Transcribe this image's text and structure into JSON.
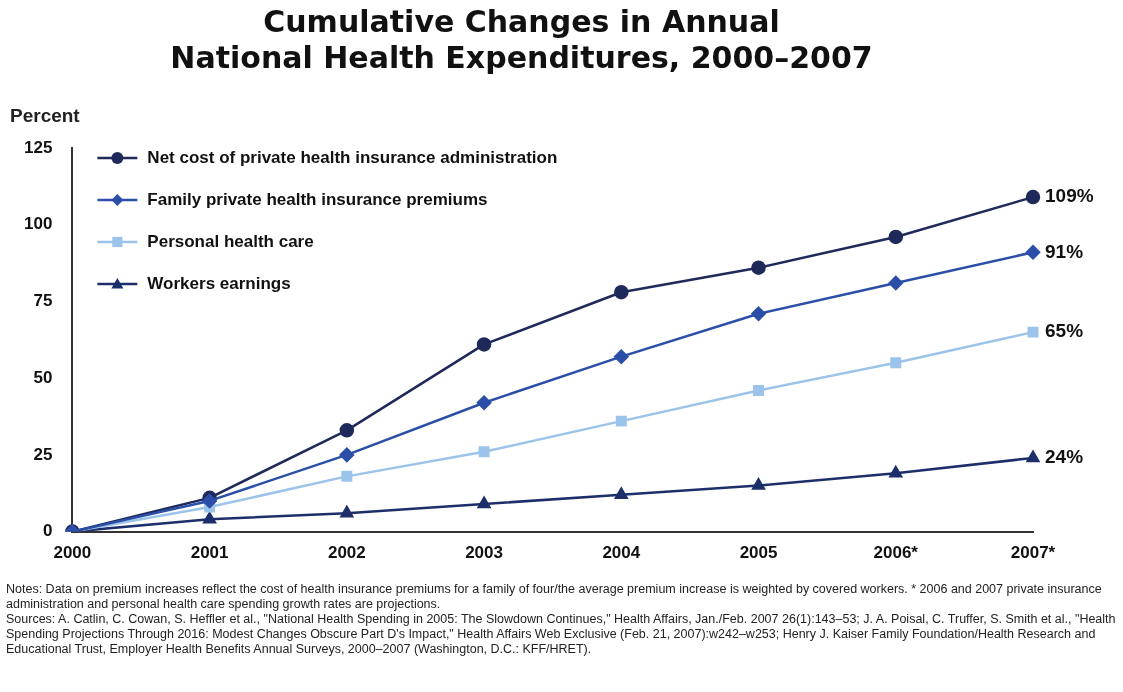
{
  "chart_data": {
    "type": "line",
    "title": "Cumulative Changes in Annual\nNational Health Expenditures, 2000–2007",
    "ylabel": "Percent",
    "categories": [
      "2000",
      "2001",
      "2002",
      "2003",
      "2004",
      "2005",
      "2006*",
      "2007*"
    ],
    "series": [
      {
        "name": "Net cost of private health insurance administration",
        "color": "#1f2a5a",
        "marker": "circle",
        "values": [
          0,
          11,
          33,
          61,
          78,
          86,
          96,
          109
        ],
        "value_labels": [
          null,
          null,
          null,
          null,
          null,
          null,
          null,
          "109%"
        ]
      },
      {
        "name": "Family private health insurance premiums",
        "color": "#2b4fa8",
        "marker": "diamond",
        "values": [
          0,
          10,
          25,
          42,
          57,
          71,
          81,
          91
        ],
        "value_labels": [
          null,
          null,
          null,
          null,
          null,
          null,
          null,
          "91%"
        ]
      },
      {
        "name": "Personal health care",
        "color": "#9cc3ea",
        "marker": "square",
        "values": [
          0,
          8,
          18,
          26,
          36,
          46,
          55,
          65
        ],
        "value_labels": [
          null,
          null,
          null,
          null,
          null,
          null,
          null,
          "65%"
        ]
      },
      {
        "name": "Workers earnings",
        "color": "#1c2f6b",
        "marker": "triangle",
        "values": [
          0,
          4,
          6,
          9,
          12,
          15,
          19,
          24
        ],
        "value_labels": [
          null,
          null,
          null,
          null,
          null,
          null,
          null,
          "24%"
        ]
      }
    ],
    "ylim": [
      0,
      125
    ],
    "yticks": [
      0,
      25,
      50,
      75,
      100,
      125
    ],
    "grid": false,
    "legend": "top left",
    "annotations": [
      "Notes: Data on premium increases reflect the cost of health insurance premiums for a family of four/the average premium increase is weighted by covered workers. * 2006 and 2007 private insurance administration and personal health care spending growth rates are projections.",
      "Sources: A. Catlin, C. Cowan, S. Heffler et al., \"National Health Spending in 2005: The Slowdown Continues,\" Health Affairs, Jan./Feb. 2007 26(1):143–53; J. A. Poisal, C. Truffer, S. Smith et al., \"Health Spending Projections Through 2016: Modest Changes Obscure Part D's Impact,\" Health Affairs Web Exclusive (Feb. 21, 2007):w242–w253; Henry J. Kaiser Family Foundation/Health Research and Educational Trust, Employer Health Benefits Annual Surveys, 2000–2007 (Washington, D.C.: KFF/HRET)."
    ]
  }
}
